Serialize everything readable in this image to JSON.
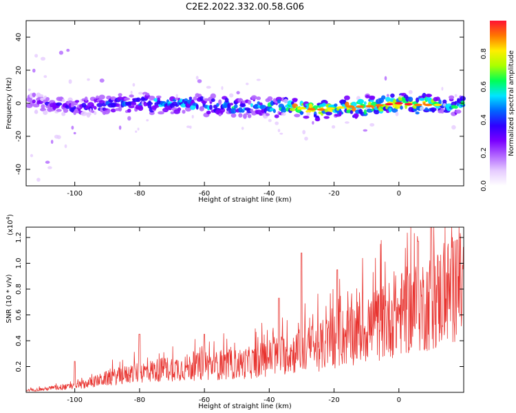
{
  "title": "C2E2.2022.332.00.58.G06",
  "colors": {
    "snr_line": "#e8332f",
    "axis": "#000000",
    "colormap": [
      "#ffffff",
      "#e6ccff",
      "#b266ff",
      "#7a00ff",
      "#2e00ff",
      "#0066ff",
      "#00e5ff",
      "#00ff55",
      "#aaff00",
      "#ffee00",
      "#ff7700",
      "#ff1133"
    ]
  },
  "chart_data": [
    {
      "type": "heatmap",
      "xlabel": "Height of straight line (km)",
      "ylabel": "Frequency (Hz)",
      "xlim": [
        -115,
        20
      ],
      "ylim": [
        -50,
        50
      ],
      "xticks": [
        -100,
        -80,
        -60,
        -40,
        -20,
        0
      ],
      "yticks": [
        -40,
        -20,
        0,
        20,
        40
      ],
      "ridge": {
        "description_points_x": [
          -110,
          -100,
          -90,
          -80,
          -70,
          -60,
          -50,
          -40,
          -30,
          -25,
          -20,
          -15,
          -10,
          -5,
          0,
          5,
          10,
          15
        ],
        "center_freq_y": [
          0,
          -2,
          -1,
          0,
          0,
          -1,
          -2,
          -2,
          -3,
          -4,
          -3,
          -2,
          -2,
          -1,
          0,
          -1,
          -1,
          -1
        ],
        "peak_amplitude": [
          0.3,
          0.4,
          0.45,
          0.5,
          0.55,
          0.55,
          0.55,
          0.6,
          0.85,
          0.95,
          0.8,
          0.95,
          0.9,
          0.95,
          1.0,
          0.95,
          0.95,
          0.6
        ]
      },
      "colorbar": {
        "label": "Normalized spectral amplitude",
        "range": [
          0.0,
          1.0
        ],
        "ticks": [
          "0.0",
          "0.2",
          "0.4",
          "0.6",
          "0.8"
        ]
      }
    },
    {
      "type": "line",
      "xlabel": "Height of straight line (km)",
      "ylabel": "SNR (10 * v/v)",
      "exponent_label": "(x10",
      "exponent_sup": "4",
      "exponent_close": ")",
      "xlim": [
        -115,
        20
      ],
      "ylim": [
        0,
        1.28
      ],
      "xticks": [
        -100,
        -80,
        -60,
        -40,
        -20,
        0
      ],
      "yticks": [
        "0.2",
        "0.4",
        "0.6",
        "0.8",
        "1.0",
        "1.2"
      ],
      "envelope_x": [
        -115,
        -110,
        -105,
        -100,
        -95,
        -90,
        -85,
        -80,
        -75,
        -70,
        -65,
        -60,
        -55,
        -50,
        -45,
        -40,
        -35,
        -30,
        -25,
        -20,
        -15,
        -10,
        -5,
        0,
        5,
        10,
        15,
        20
      ],
      "envelope_y": [
        0.02,
        0.03,
        0.05,
        0.06,
        0.1,
        0.14,
        0.17,
        0.2,
        0.22,
        0.24,
        0.25,
        0.26,
        0.27,
        0.28,
        0.3,
        0.35,
        0.38,
        0.42,
        0.45,
        0.52,
        0.58,
        0.63,
        0.7,
        0.78,
        0.85,
        0.9,
        1.0,
        1.05
      ],
      "spikes": [
        {
          "x": -100,
          "y": 0.24
        },
        {
          "x": -80,
          "y": 0.45
        },
        {
          "x": -60,
          "y": 0.45
        },
        {
          "x": -37,
          "y": 0.73
        },
        {
          "x": -30,
          "y": 1.08
        },
        {
          "x": -19,
          "y": 0.95
        },
        {
          "x": 6,
          "y": 1.17
        },
        {
          "x": 10,
          "y": 1.28
        },
        {
          "x": 18,
          "y": 1.18
        }
      ]
    }
  ]
}
